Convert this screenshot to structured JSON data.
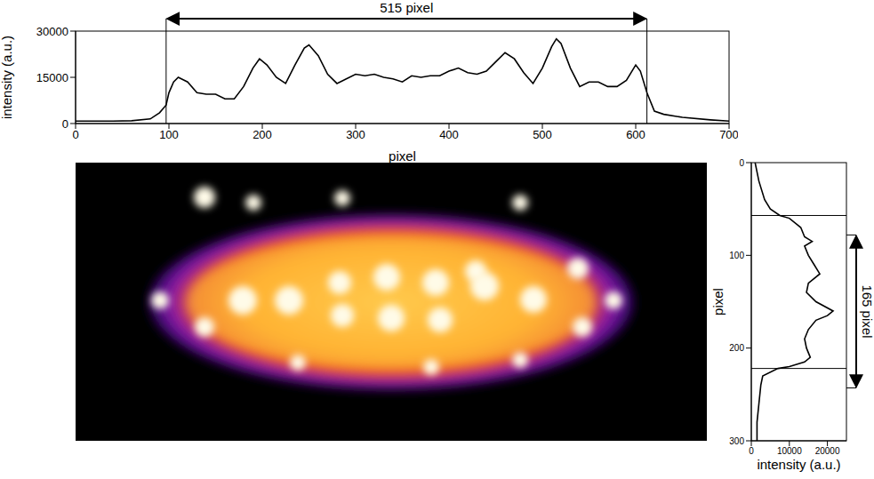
{
  "chart_data": [
    {
      "type": "line",
      "x_label": "pixel",
      "y_label": "intensity (a.u.)",
      "xlim": [
        0,
        700
      ],
      "xticks": [
        0,
        100,
        200,
        300,
        400,
        500,
        600,
        700
      ],
      "ylim": [
        0,
        30000
      ],
      "yticks": [
        0,
        15000,
        30000
      ],
      "color": "#000000",
      "annotation": {
        "text": "515 pixel",
        "range": [
          97,
          612
        ]
      },
      "x": [
        0,
        20,
        40,
        60,
        80,
        90,
        97,
        100,
        105,
        110,
        120,
        130,
        140,
        150,
        160,
        170,
        180,
        190,
        197,
        205,
        215,
        225,
        235,
        245,
        250,
        260,
        270,
        280,
        290,
        300,
        310,
        320,
        330,
        340,
        350,
        360,
        370,
        380,
        390,
        400,
        410,
        420,
        430,
        440,
        450,
        460,
        470,
        480,
        490,
        500,
        510,
        515,
        520,
        530,
        540,
        550,
        560,
        570,
        580,
        590,
        600,
        605,
        612,
        620,
        630,
        650,
        680,
        700
      ],
      "values": [
        800,
        800,
        800,
        900,
        1500,
        3500,
        6000,
        10000,
        13500,
        15000,
        13500,
        10000,
        9500,
        9500,
        8000,
        8000,
        12000,
        18000,
        21000,
        19000,
        15000,
        13000,
        19000,
        24500,
        25500,
        22000,
        16000,
        13000,
        14500,
        16000,
        15500,
        16000,
        15000,
        14500,
        13500,
        15500,
        15000,
        15500,
        15500,
        17000,
        18000,
        16500,
        16000,
        17000,
        20000,
        23000,
        21000,
        16500,
        13000,
        18000,
        25000,
        27500,
        26000,
        18000,
        12000,
        13500,
        13500,
        12000,
        12000,
        14000,
        19000,
        17000,
        10000,
        4000,
        3000,
        2000,
        1200,
        800
      ]
    },
    {
      "type": "line",
      "orientation": "horizontal",
      "x_label": "intensity (a.u.)",
      "y_label": "pixel",
      "xlim": [
        0,
        25000
      ],
      "xticks": [
        0,
        10000,
        20000
      ],
      "ylim": [
        0,
        300
      ],
      "yticks": [
        0,
        100,
        200,
        300
      ],
      "color": "#000000",
      "annotation": {
        "text": "165 pixel",
        "range": [
          57,
          222
        ]
      },
      "y": [
        0,
        20,
        40,
        50,
        57,
        60,
        70,
        80,
        85,
        90,
        100,
        110,
        120,
        130,
        140,
        150,
        160,
        165,
        170,
        180,
        190,
        200,
        210,
        215,
        220,
        222,
        230,
        240,
        260,
        280,
        300
      ],
      "x": [
        1000,
        2000,
        3500,
        5000,
        7500,
        10000,
        13000,
        14000,
        16000,
        14000,
        15000,
        16500,
        18000,
        15000,
        14500,
        17000,
        21500,
        20000,
        17000,
        15000,
        14000,
        14500,
        15500,
        14000,
        10000,
        7000,
        3000,
        2500,
        2000,
        1500,
        1500
      ]
    }
  ]
}
